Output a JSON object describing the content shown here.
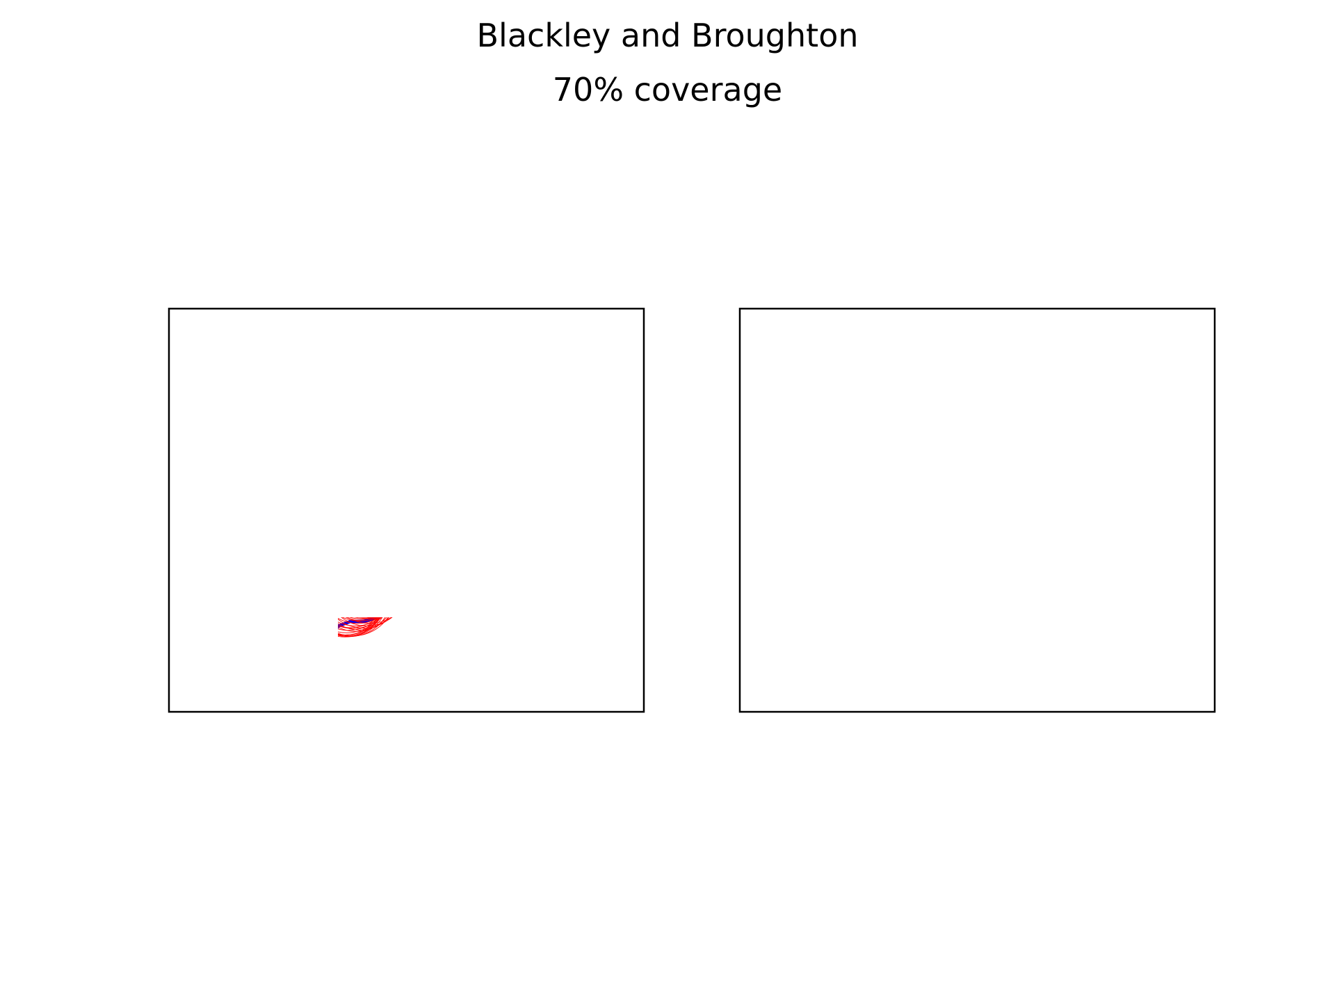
{
  "title": "Blackley and Broughton",
  "subtitle": "70% coverage",
  "colors": {
    "boundary": "#0000ee",
    "coverage": "#ff0000",
    "frame": "#000000",
    "background": "#ffffff"
  },
  "panels": [
    {
      "name": "coverage-circles-outline",
      "style": "outline"
    },
    {
      "name": "coverage-union-filled",
      "style": "filled"
    }
  ]
}
